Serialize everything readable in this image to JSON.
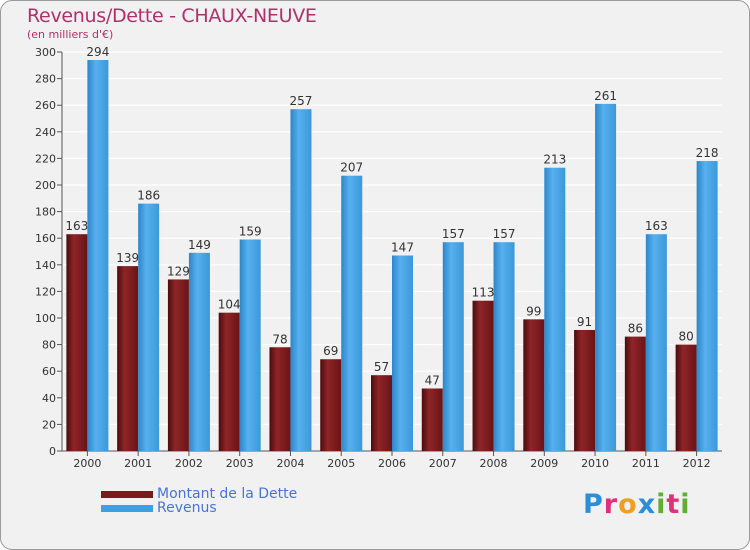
{
  "chart_data": {
    "type": "bar",
    "title": "Revenus/Dette - CHAUX-NEUVE",
    "subtitle": "(en milliers d'€)",
    "categories": [
      "2000",
      "2001",
      "2002",
      "2003",
      "2004",
      "2005",
      "2006",
      "2007",
      "2008",
      "2009",
      "2010",
      "2011",
      "2012"
    ],
    "series": [
      {
        "name": "Montant de la Dette",
        "color": "#7a1a1c",
        "values": [
          163,
          139,
          129,
          104,
          78,
          69,
          57,
          47,
          113,
          99,
          91,
          86,
          80
        ]
      },
      {
        "name": "Revenus",
        "color": "#3f9fe0",
        "values": [
          294,
          186,
          149,
          159,
          257,
          207,
          147,
          157,
          157,
          213,
          261,
          163,
          218
        ]
      }
    ],
    "ylim": [
      0,
      300
    ],
    "yticks": [
      0,
      20,
      40,
      60,
      80,
      100,
      120,
      140,
      160,
      180,
      200,
      220,
      240,
      260,
      280,
      300
    ],
    "grid": true,
    "legend": "bottom-left"
  },
  "brand": {
    "letters": [
      "P",
      "r",
      "o",
      "x",
      "i",
      "t",
      "i"
    ],
    "colors": [
      "#2a8fd8",
      "#e0307a",
      "#f0a020",
      "#2a8fd8",
      "#60b030",
      "#e0307a",
      "#60b030"
    ]
  }
}
